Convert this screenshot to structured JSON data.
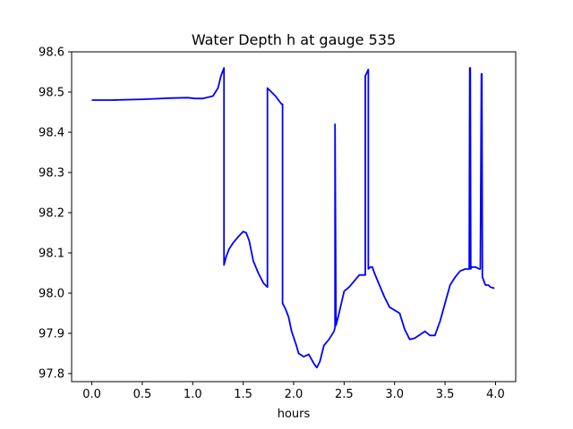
{
  "chart_data": {
    "type": "line",
    "title": "Water Depth h at gauge 535",
    "xlabel": "hours",
    "ylabel": "",
    "xlim": [
      -0.2,
      4.2
    ],
    "ylim": [
      97.78,
      98.6
    ],
    "xticks": [
      0.0,
      0.5,
      1.0,
      1.5,
      2.0,
      2.5,
      3.0,
      3.5,
      4.0
    ],
    "xtick_labels": [
      "0.0",
      "0.5",
      "1.0",
      "1.5",
      "2.0",
      "2.5",
      "3.0",
      "3.5",
      "4.0"
    ],
    "yticks": [
      97.8,
      97.9,
      98.0,
      98.1,
      98.2,
      98.3,
      98.4,
      98.5,
      98.6
    ],
    "ytick_labels": [
      "97.8",
      "97.9",
      "98.0",
      "98.1",
      "98.2",
      "98.3",
      "98.4",
      "98.5",
      "98.6"
    ],
    "grid": false,
    "series": [
      {
        "color": "#0000ff",
        "x": [
          0.0,
          0.2,
          0.5,
          0.8,
          0.95,
          1.02,
          1.1,
          1.2,
          1.25,
          1.28,
          1.31,
          1.31,
          1.33,
          1.36,
          1.4,
          1.45,
          1.5,
          1.53,
          1.56,
          1.6,
          1.65,
          1.7,
          1.74,
          1.74,
          1.78,
          1.82,
          1.85,
          1.88,
          1.89,
          1.89,
          1.92,
          1.95,
          1.98,
          2.02,
          2.05,
          2.1,
          2.15,
          2.2,
          2.23,
          2.26,
          2.3,
          2.35,
          2.4,
          2.41,
          2.41,
          2.42,
          2.45,
          2.5,
          2.55,
          2.6,
          2.65,
          2.7,
          2.71,
          2.71,
          2.74,
          2.74,
          2.76,
          2.78,
          2.8,
          2.85,
          2.9,
          2.95,
          3.05,
          3.1,
          3.15,
          3.2,
          3.3,
          3.35,
          3.4,
          3.45,
          3.5,
          3.55,
          3.6,
          3.65,
          3.7,
          3.74,
          3.745,
          3.75,
          3.755,
          3.76,
          3.8,
          3.84,
          3.85,
          3.86,
          3.865,
          3.87,
          3.9,
          3.93,
          3.95,
          3.99
        ],
        "y": [
          98.48,
          98.48,
          98.482,
          98.485,
          98.486,
          98.484,
          98.484,
          98.49,
          98.51,
          98.54,
          98.56,
          98.07,
          98.09,
          98.11,
          98.125,
          98.14,
          98.153,
          98.15,
          98.13,
          98.08,
          98.05,
          98.025,
          98.015,
          98.51,
          98.5,
          98.49,
          98.48,
          98.47,
          98.47,
          97.975,
          97.96,
          97.94,
          97.905,
          97.875,
          97.85,
          97.842,
          97.848,
          97.825,
          97.815,
          97.83,
          97.87,
          97.885,
          97.905,
          97.915,
          98.42,
          97.92,
          97.95,
          98.005,
          98.015,
          98.03,
          98.045,
          98.045,
          98.045,
          98.54,
          98.556,
          98.06,
          98.065,
          98.065,
          98.05,
          98.02,
          97.99,
          97.965,
          97.95,
          97.91,
          97.885,
          97.888,
          97.905,
          97.895,
          97.895,
          97.93,
          97.975,
          98.02,
          98.04,
          98.055,
          98.06,
          98.06,
          98.56,
          98.56,
          98.06,
          98.065,
          98.065,
          98.06,
          98.06,
          98.545,
          98.545,
          98.04,
          98.02,
          98.02,
          98.015,
          98.012
        ]
      }
    ]
  }
}
